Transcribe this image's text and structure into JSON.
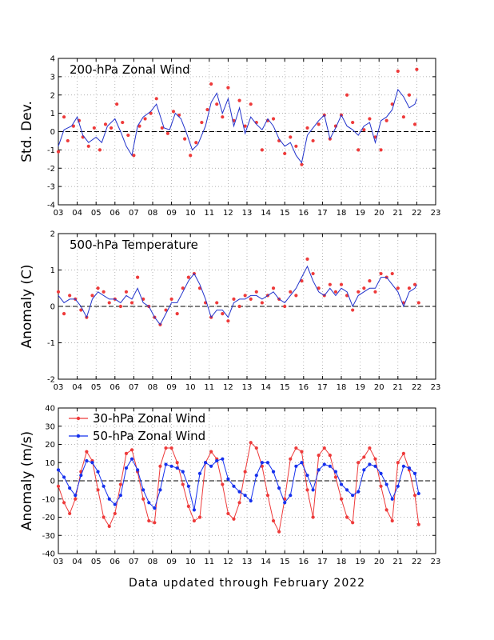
{
  "footer": "Data updated through February 2022",
  "colors": {
    "red": "#ee3a3a",
    "blue": "#1530ee",
    "line": "#2233cc",
    "grid": "#999999"
  },
  "chart_data": [
    {
      "type": "scatter",
      "title": "200-hPa Zonal Wind",
      "ylabel": "Std. Dev.",
      "xlim": [
        2003,
        2023
      ],
      "ylim": [
        -4,
        4
      ],
      "x_tick_labels": [
        "03",
        "04",
        "05",
        "06",
        "07",
        "08",
        "09",
        "10",
        "11",
        "12",
        "13",
        "14",
        "15",
        "16",
        "17",
        "18",
        "19",
        "20",
        "21",
        "22",
        "23"
      ],
      "y_ticks": [
        -4,
        -3,
        -2,
        -1,
        0,
        1,
        2,
        3,
        4
      ],
      "grid": true,
      "zero_line": true,
      "series": [
        {
          "kind": "points",
          "color": "red",
          "x": [
            2003.0,
            2003.3,
            2003.5,
            2003.8,
            2004.1,
            2004.3,
            2004.6,
            2004.9,
            2005.2,
            2005.5,
            2005.8,
            2006.1,
            2006.4,
            2006.7,
            2007.0,
            2007.3,
            2007.6,
            2007.9,
            2008.2,
            2008.5,
            2008.8,
            2009.1,
            2009.4,
            2009.7,
            2010.0,
            2010.3,
            2010.6,
            2010.9,
            2011.1,
            2011.4,
            2011.7,
            2012.0,
            2012.3,
            2012.6,
            2012.9,
            2013.2,
            2013.5,
            2013.8,
            2014.1,
            2014.4,
            2014.7,
            2015.0,
            2015.3,
            2015.6,
            2015.9,
            2016.2,
            2016.5,
            2016.8,
            2017.1,
            2017.4,
            2017.7,
            2018.0,
            2018.3,
            2018.6,
            2018.9,
            2019.2,
            2019.5,
            2019.8,
            2020.1,
            2020.4,
            2020.7,
            2021.0,
            2021.3,
            2021.6,
            2021.9,
            2022.0
          ],
          "y": [
            -1.1,
            0.8,
            -0.5,
            0.3,
            0.6,
            -0.3,
            -0.8,
            0.2,
            -1.0,
            0.4,
            0.2,
            1.5,
            0.5,
            -0.2,
            -1.3,
            0.3,
            0.7,
            1.0,
            1.8,
            0.2,
            -0.1,
            1.1,
            0.9,
            -0.4,
            -1.3,
            -0.6,
            0.5,
            1.2,
            2.6,
            1.5,
            0.8,
            2.4,
            0.6,
            1.7,
            0.3,
            1.5,
            0.5,
            -1.0,
            0.6,
            0.7,
            -0.5,
            -1.2,
            -0.3,
            -0.8,
            -1.8,
            0.2,
            -0.5,
            0.4,
            0.9,
            -0.4,
            0.3,
            0.9,
            2.0,
            0.5,
            -1.0,
            0.1,
            0.7,
            -0.3,
            -1.0,
            0.6,
            1.5,
            3.3,
            0.8,
            2.0,
            0.4,
            3.4
          ]
        },
        {
          "kind": "line",
          "color": "line",
          "x": [
            2003.0,
            2003.3,
            2003.7,
            2004.0,
            2004.3,
            2004.6,
            2005.0,
            2005.3,
            2005.6,
            2006.0,
            2006.3,
            2006.6,
            2006.9,
            2007.2,
            2007.5,
            2007.9,
            2008.2,
            2008.6,
            2008.9,
            2009.2,
            2009.5,
            2009.8,
            2010.1,
            2010.4,
            2010.8,
            2011.1,
            2011.4,
            2011.7,
            2012.0,
            2012.3,
            2012.6,
            2012.9,
            2013.2,
            2013.5,
            2013.8,
            2014.1,
            2014.4,
            2014.7,
            2015.0,
            2015.3,
            2015.6,
            2015.9,
            2016.2,
            2016.5,
            2016.8,
            2017.1,
            2017.4,
            2017.7,
            2018.0,
            2018.3,
            2018.6,
            2018.9,
            2019.2,
            2019.5,
            2019.8,
            2020.1,
            2020.4,
            2020.7,
            2021.0,
            2021.3,
            2021.6,
            2021.9,
            2022.0
          ],
          "y": [
            -0.8,
            0.1,
            0.3,
            0.8,
            -0.2,
            -0.6,
            -0.3,
            -0.6,
            0.3,
            0.7,
            0.0,
            -0.8,
            -1.3,
            0.3,
            0.8,
            1.1,
            1.5,
            0.2,
            0.1,
            1.0,
            0.7,
            -0.1,
            -1.0,
            -0.7,
            0.3,
            1.6,
            2.1,
            1.0,
            1.8,
            0.3,
            1.3,
            -0.1,
            0.8,
            0.4,
            0.1,
            0.7,
            0.3,
            -0.4,
            -0.8,
            -0.6,
            -1.3,
            -1.7,
            -0.2,
            0.2,
            0.6,
            0.9,
            -0.4,
            0.2,
            0.9,
            0.3,
            0.1,
            -0.2,
            0.3,
            0.5,
            -0.6,
            0.6,
            0.8,
            1.2,
            2.3,
            1.9,
            1.3,
            1.5,
            1.8
          ]
        }
      ]
    },
    {
      "type": "scatter",
      "title": "500-hPa Temperature",
      "ylabel": "Anomaly (C)",
      "xlim": [
        2003,
        2023
      ],
      "ylim": [
        -2,
        2
      ],
      "x_tick_labels": [
        "03",
        "04",
        "05",
        "06",
        "07",
        "08",
        "09",
        "10",
        "11",
        "12",
        "13",
        "14",
        "15",
        "16",
        "17",
        "18",
        "19",
        "20",
        "21",
        "22",
        "23"
      ],
      "y_ticks": [
        -2,
        -1,
        0,
        1,
        2
      ],
      "grid": true,
      "zero_line": true,
      "series": [
        {
          "kind": "points",
          "color": "red",
          "x": [
            2003.0,
            2003.3,
            2003.6,
            2003.9,
            2004.2,
            2004.5,
            2004.8,
            2005.1,
            2005.4,
            2005.7,
            2006.0,
            2006.3,
            2006.6,
            2006.9,
            2007.2,
            2007.5,
            2007.8,
            2008.1,
            2008.4,
            2008.7,
            2009.0,
            2009.3,
            2009.6,
            2009.9,
            2010.2,
            2010.5,
            2010.8,
            2011.1,
            2011.4,
            2011.7,
            2012.0,
            2012.3,
            2012.6,
            2012.9,
            2013.2,
            2013.5,
            2013.8,
            2014.1,
            2014.4,
            2014.7,
            2015.0,
            2015.3,
            2015.6,
            2015.9,
            2016.2,
            2016.5,
            2016.8,
            2017.1,
            2017.4,
            2017.7,
            2018.0,
            2018.3,
            2018.6,
            2018.9,
            2019.2,
            2019.5,
            2019.8,
            2020.1,
            2020.4,
            2020.7,
            2021.0,
            2021.3,
            2021.6,
            2021.9,
            2022.1
          ],
          "y": [
            0.4,
            -0.2,
            0.3,
            0.2,
            -0.1,
            -0.3,
            0.3,
            0.5,
            0.4,
            0.1,
            0.2,
            0.0,
            0.4,
            0.1,
            0.8,
            0.2,
            0.0,
            -0.3,
            -0.5,
            -0.1,
            0.2,
            -0.2,
            0.5,
            0.8,
            0.9,
            0.5,
            0.1,
            -0.3,
            0.1,
            -0.2,
            -0.4,
            0.2,
            0.0,
            0.3,
            0.2,
            0.4,
            0.1,
            0.3,
            0.5,
            0.2,
            0.0,
            0.4,
            0.3,
            0.7,
            1.3,
            0.9,
            0.5,
            0.3,
            0.6,
            0.4,
            0.6,
            0.3,
            -0.1,
            0.4,
            0.5,
            0.7,
            0.4,
            0.9,
            0.8,
            0.9,
            0.5,
            0.1,
            0.5,
            0.6,
            0.1
          ]
        },
        {
          "kind": "line",
          "color": "line",
          "x": [
            2003.0,
            2003.3,
            2003.6,
            2003.9,
            2004.2,
            2004.5,
            2004.8,
            2005.1,
            2005.4,
            2005.7,
            2006.0,
            2006.3,
            2006.6,
            2006.9,
            2007.2,
            2007.5,
            2007.8,
            2008.1,
            2008.4,
            2008.7,
            2009.0,
            2009.3,
            2009.6,
            2009.9,
            2010.2,
            2010.5,
            2010.8,
            2011.1,
            2011.4,
            2011.7,
            2012.0,
            2012.3,
            2012.6,
            2012.9,
            2013.2,
            2013.5,
            2013.8,
            2014.1,
            2014.4,
            2014.7,
            2015.0,
            2015.3,
            2015.6,
            2015.9,
            2016.2,
            2016.5,
            2016.8,
            2017.1,
            2017.4,
            2017.7,
            2018.0,
            2018.3,
            2018.6,
            2018.9,
            2019.2,
            2019.5,
            2019.8,
            2020.1,
            2020.4,
            2020.7,
            2021.0,
            2021.3,
            2021.6,
            2021.9,
            2022.0
          ],
          "y": [
            0.3,
            0.1,
            0.2,
            0.2,
            0.0,
            -0.3,
            0.2,
            0.4,
            0.3,
            0.2,
            0.2,
            0.1,
            0.3,
            0.2,
            0.5,
            0.1,
            0.0,
            -0.3,
            -0.5,
            -0.2,
            0.1,
            0.1,
            0.4,
            0.7,
            0.9,
            0.6,
            0.2,
            -0.3,
            -0.1,
            -0.1,
            -0.3,
            0.1,
            0.2,
            0.2,
            0.3,
            0.3,
            0.2,
            0.3,
            0.4,
            0.2,
            0.1,
            0.3,
            0.5,
            0.8,
            1.1,
            0.7,
            0.4,
            0.3,
            0.5,
            0.3,
            0.5,
            0.4,
            0.0,
            0.3,
            0.4,
            0.5,
            0.5,
            0.8,
            0.8,
            0.6,
            0.4,
            0.0,
            0.4,
            0.5,
            0.6
          ]
        }
      ]
    },
    {
      "type": "line",
      "title": "",
      "ylabel": "Anomaly (m/s)",
      "xlim": [
        2003,
        2023
      ],
      "ylim": [
        -40,
        40
      ],
      "x_tick_labels": [
        "03",
        "04",
        "05",
        "06",
        "07",
        "08",
        "09",
        "10",
        "11",
        "12",
        "13",
        "14",
        "15",
        "16",
        "17",
        "18",
        "19",
        "20",
        "21",
        "22",
        "23"
      ],
      "y_ticks": [
        -40,
        -30,
        -20,
        -10,
        0,
        10,
        20,
        30,
        40
      ],
      "grid": true,
      "zero_line": true,
      "legend": "top-left",
      "series": [
        {
          "name": "30-hPa Zonal Wind",
          "kind": "line+points",
          "color": "red",
          "x": [
            2003.0,
            2003.3,
            2003.6,
            2003.9,
            2004.2,
            2004.5,
            2004.8,
            2005.1,
            2005.4,
            2005.7,
            2006.0,
            2006.3,
            2006.6,
            2006.9,
            2007.2,
            2007.5,
            2007.8,
            2008.1,
            2008.4,
            2008.7,
            2009.0,
            2009.3,
            2009.6,
            2009.9,
            2010.2,
            2010.5,
            2010.8,
            2011.1,
            2011.4,
            2011.7,
            2012.0,
            2012.3,
            2012.6,
            2012.9,
            2013.2,
            2013.5,
            2013.8,
            2014.1,
            2014.4,
            2014.7,
            2015.0,
            2015.3,
            2015.6,
            2015.9,
            2016.2,
            2016.5,
            2016.8,
            2017.1,
            2017.4,
            2017.7,
            2018.0,
            2018.3,
            2018.6,
            2018.9,
            2019.2,
            2019.5,
            2019.8,
            2020.1,
            2020.4,
            2020.7,
            2021.0,
            2021.3,
            2021.6,
            2021.9,
            2022.1
          ],
          "y": [
            -3,
            -12,
            -18,
            -10,
            5,
            16,
            11,
            -5,
            -20,
            -25,
            -18,
            -2,
            15,
            17,
            5,
            -10,
            -22,
            -23,
            8,
            18,
            18,
            10,
            -2,
            -14,
            -22,
            -20,
            10,
            16,
            12,
            -2,
            -18,
            -21,
            -12,
            5,
            21,
            18,
            8,
            -8,
            -22,
            -28,
            -10,
            12,
            18,
            16,
            -5,
            -20,
            14,
            18,
            14,
            2,
            -10,
            -20,
            -23,
            10,
            13,
            18,
            12,
            -3,
            -16,
            -22,
            10,
            15,
            6,
            -8,
            -24
          ]
        },
        {
          "name": "50-hPa Zonal Wind",
          "kind": "line+points",
          "color": "blue",
          "x": [
            2003.0,
            2003.3,
            2003.6,
            2003.9,
            2004.2,
            2004.5,
            2004.8,
            2005.1,
            2005.4,
            2005.7,
            2006.0,
            2006.3,
            2006.6,
            2006.9,
            2007.2,
            2007.5,
            2007.8,
            2008.1,
            2008.4,
            2008.7,
            2009.0,
            2009.3,
            2009.6,
            2009.9,
            2010.2,
            2010.5,
            2010.8,
            2011.1,
            2011.4,
            2011.7,
            2012.0,
            2012.3,
            2012.6,
            2012.9,
            2013.2,
            2013.5,
            2013.8,
            2014.1,
            2014.4,
            2014.7,
            2015.0,
            2015.3,
            2015.6,
            2015.9,
            2016.2,
            2016.5,
            2016.8,
            2017.1,
            2017.4,
            2017.7,
            2018.0,
            2018.3,
            2018.6,
            2018.9,
            2019.2,
            2019.5,
            2019.8,
            2020.1,
            2020.4,
            2020.7,
            2021.0,
            2021.3,
            2021.6,
            2021.9,
            2022.1
          ],
          "y": [
            6,
            2,
            -4,
            -8,
            3,
            11,
            10,
            5,
            -3,
            -10,
            -13,
            -8,
            7,
            12,
            6,
            -5,
            -12,
            -15,
            -5,
            9,
            8,
            7,
            5,
            -3,
            -16,
            4,
            10,
            8,
            11,
            12,
            1,
            -3,
            -6,
            -8,
            -11,
            3,
            10,
            10,
            5,
            -4,
            -12,
            -8,
            8,
            10,
            3,
            -5,
            6,
            9,
            8,
            5,
            -2,
            -5,
            -8,
            -6,
            6,
            9,
            8,
            4,
            -2,
            -10,
            -3,
            8,
            7,
            4,
            -7
          ]
        }
      ]
    }
  ]
}
